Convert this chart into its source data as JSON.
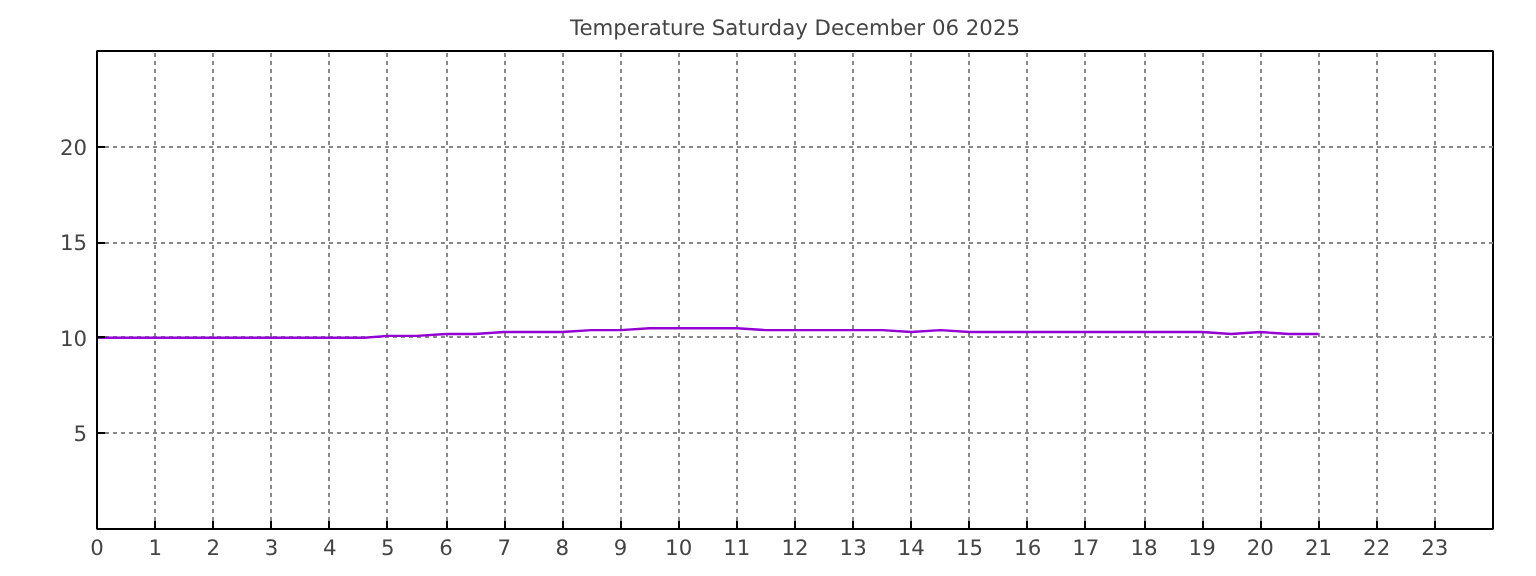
{
  "chart_data": {
    "type": "line",
    "title": "Temperature Saturday December 06 2025",
    "x": [
      0,
      1,
      2,
      3,
      4,
      4.6,
      5,
      5.5,
      6,
      6.5,
      7,
      8,
      8.5,
      9,
      9.5,
      10,
      11,
      11.5,
      12,
      13,
      13.5,
      14,
      14.5,
      15,
      16,
      17,
      18,
      19,
      19.5,
      20,
      20.5,
      21
    ],
    "series": [
      {
        "color": "#9400d3",
        "values": [
          10,
          10,
          10,
          10,
          10,
          10,
          10.1,
          10.1,
          10.2,
          10.2,
          10.3,
          10.3,
          10.4,
          10.4,
          10.5,
          10.5,
          10.5,
          10.4,
          10.4,
          10.4,
          10.4,
          10.3,
          10.4,
          10.3,
          10.3,
          10.3,
          10.3,
          10.3,
          10.2,
          10.3,
          10.2,
          10.2
        ]
      }
    ],
    "xlim": [
      0,
      24
    ],
    "ylim": [
      0,
      25
    ],
    "xticks": [
      0,
      1,
      2,
      3,
      4,
      5,
      6,
      7,
      8,
      9,
      10,
      11,
      12,
      13,
      14,
      15,
      16,
      17,
      18,
      19,
      20,
      21,
      22,
      23
    ],
    "yticks": [
      5,
      10,
      15,
      20
    ],
    "grid": true,
    "line_style": "solid",
    "marker": "none"
  }
}
